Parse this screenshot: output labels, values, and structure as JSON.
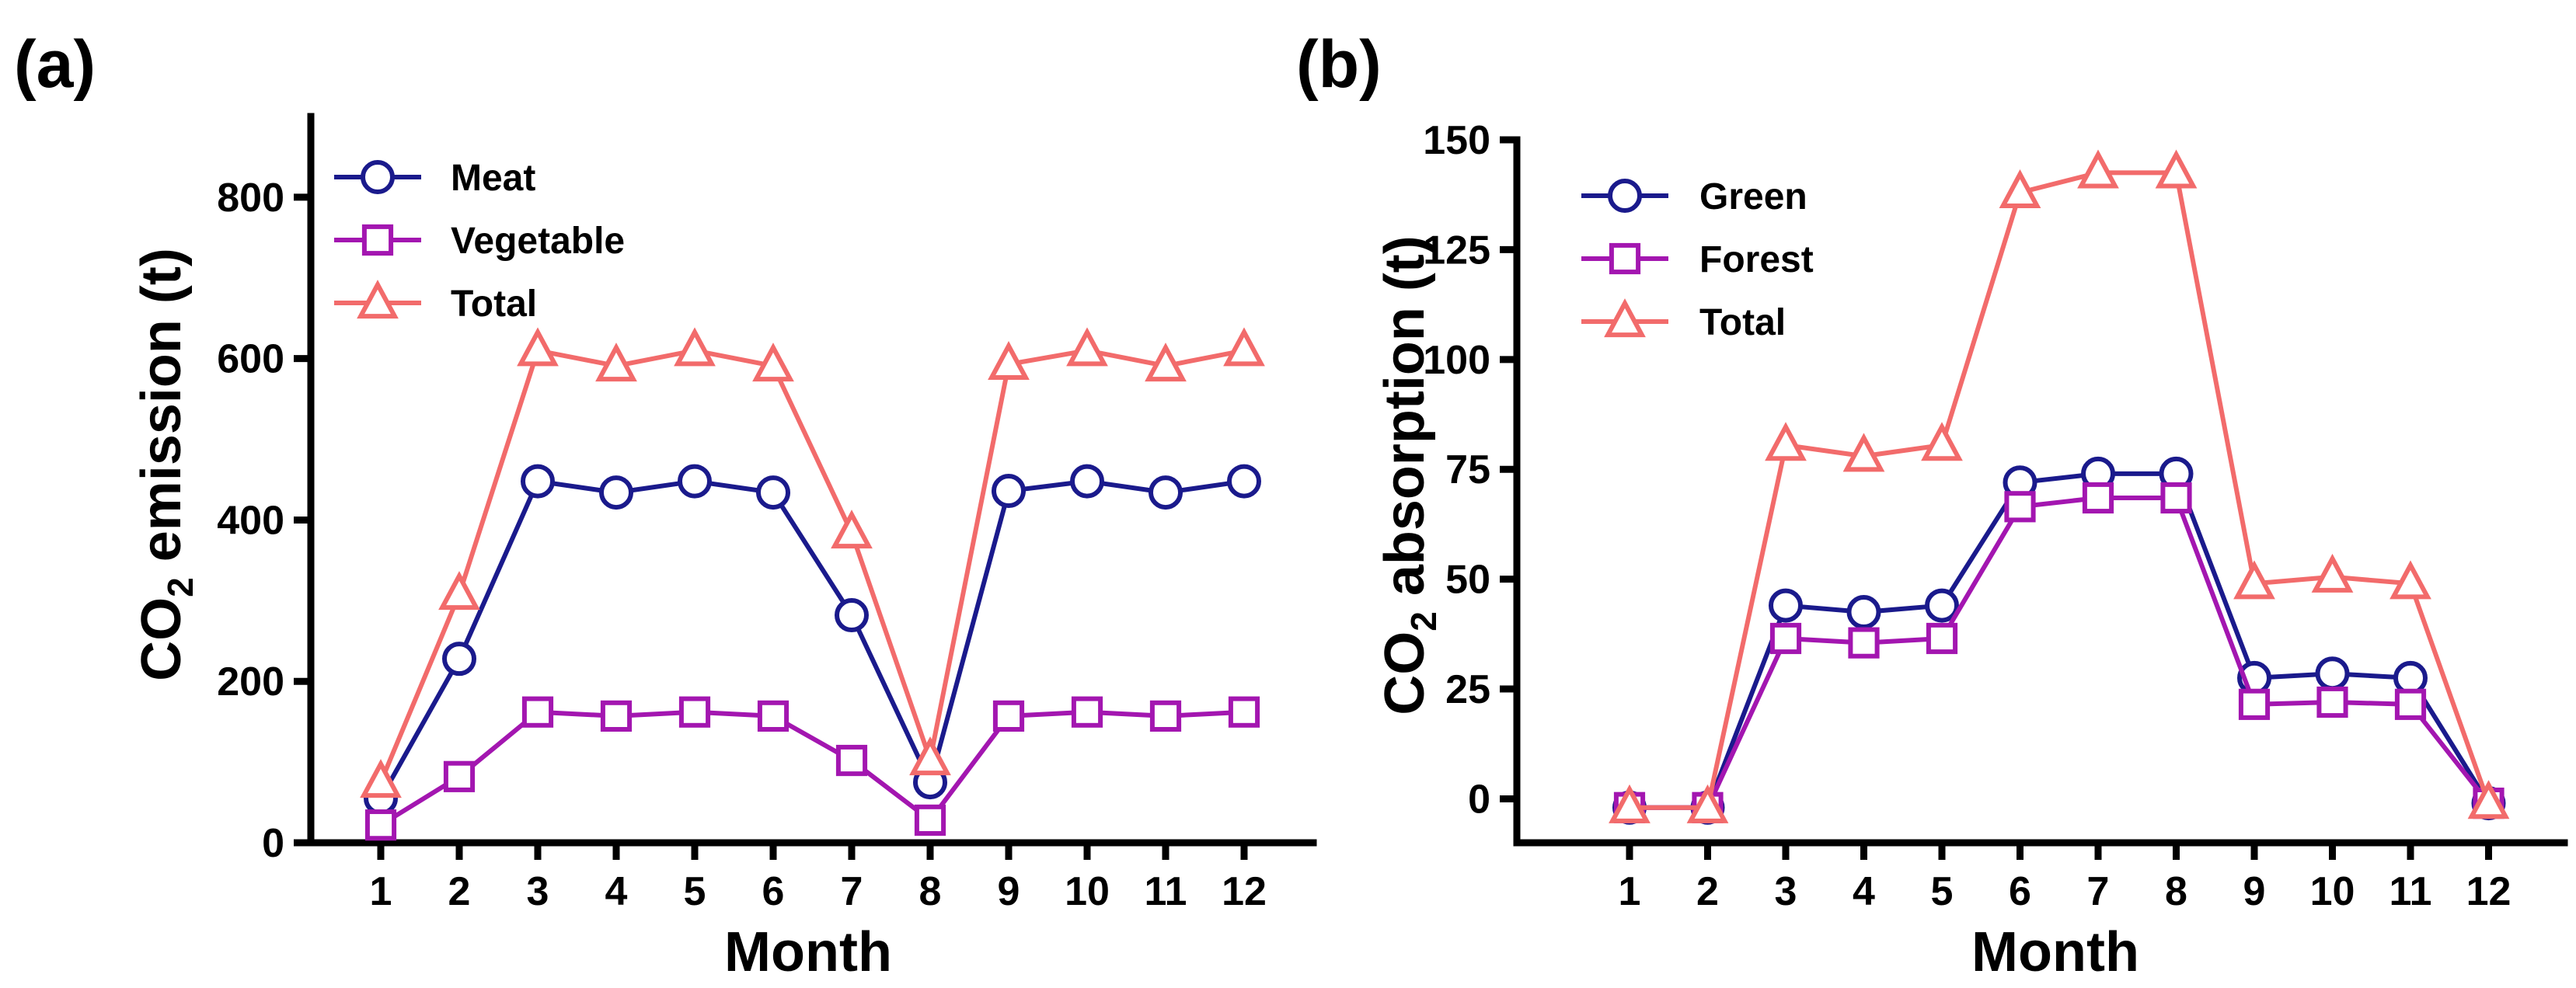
{
  "chart_data": [
    {
      "type": "line",
      "panel_label": "(a)",
      "xlabel": "Month",
      "ylabel_main": "CO",
      "ylabel_sub": "2",
      "ylabel_rest": " emission (t)",
      "x": [
        1,
        2,
        3,
        4,
        5,
        6,
        7,
        8,
        9,
        10,
        11,
        12
      ],
      "ylim": [
        0,
        900
      ],
      "yticks": [
        0,
        200,
        400,
        600,
        800
      ],
      "legend_position": "top-left",
      "series": [
        {
          "name": "Meat",
          "marker": "circle",
          "color": "#1a1a8c",
          "values": [
            55,
            228,
            448,
            434,
            448,
            434,
            282,
            75,
            436,
            448,
            434,
            448
          ]
        },
        {
          "name": "Vegetable",
          "marker": "square",
          "color": "#a316b0",
          "values": [
            22,
            82,
            162,
            157,
            162,
            157,
            102,
            28,
            157,
            162,
            157,
            162
          ]
        },
        {
          "name": "Total",
          "marker": "triangle",
          "color": "#f26b6b",
          "values": [
            75,
            308,
            610,
            591,
            610,
            591,
            384,
            103,
            593,
            610,
            591,
            610
          ]
        }
      ]
    },
    {
      "type": "line",
      "panel_label": "(b)",
      "xlabel": "Month",
      "ylabel_main": "CO",
      "ylabel_sub": "2",
      "ylabel_rest": " absorption (t)",
      "x": [
        1,
        2,
        3,
        4,
        5,
        6,
        7,
        8,
        9,
        10,
        11,
        12
      ],
      "ylim": [
        -10,
        150
      ],
      "yticks": [
        0,
        25,
        50,
        75,
        100,
        125,
        150
      ],
      "legend_position": "top-left",
      "series": [
        {
          "name": "Green",
          "marker": "circle",
          "color": "#1a1a8c",
          "values": [
            -2,
            -2,
            44,
            42.5,
            44,
            72,
            74,
            74,
            27.5,
            28.5,
            27.5,
            -1
          ]
        },
        {
          "name": "Forest",
          "marker": "square",
          "color": "#a316b0",
          "values": [
            -2,
            -2,
            36.5,
            35.5,
            36.5,
            66.5,
            68.5,
            68.5,
            21.5,
            22,
            21.5,
            -1
          ]
        },
        {
          "name": "Total",
          "marker": "triangle",
          "color": "#f26b6b",
          "values": [
            -2,
            -2,
            80.5,
            78,
            80.5,
            138,
            142.5,
            142.5,
            49,
            50.5,
            49,
            -1
          ]
        }
      ]
    }
  ]
}
